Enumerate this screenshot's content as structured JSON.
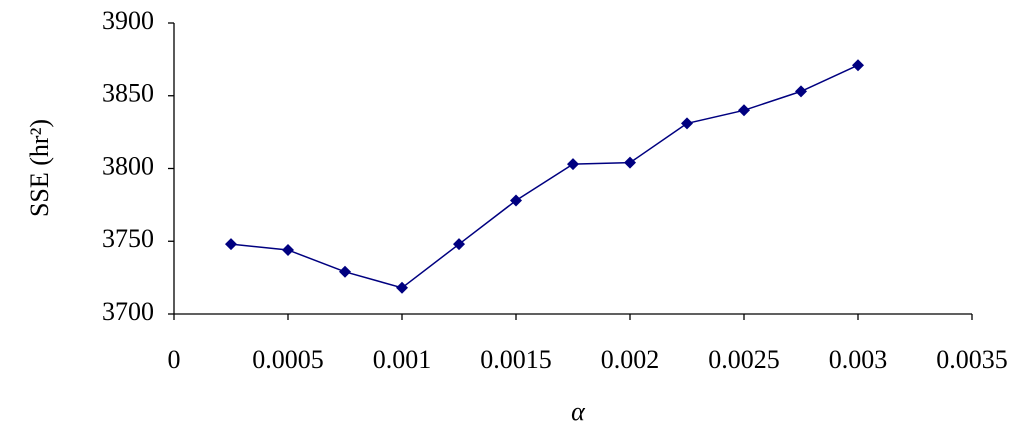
{
  "chart_data": {
    "type": "line",
    "x_label": "α",
    "y_label": "SSE (hr²)",
    "x": [
      0.00025,
      0.0005,
      0.00075,
      0.001,
      0.00125,
      0.0015,
      0.00175,
      0.002,
      0.00225,
      0.0025,
      0.00275,
      0.003
    ],
    "series": [
      {
        "name": "SSE",
        "color": "#000080",
        "values": [
          3748,
          3744,
          3729,
          3718,
          3748,
          3778,
          3803,
          3804,
          3831,
          3840,
          3853,
          3871
        ]
      }
    ],
    "xlim": [
      0,
      0.0035
    ],
    "xticks": [
      0,
      0.0005,
      0.001,
      0.0015,
      0.002,
      0.0025,
      0.003,
      0.0035
    ],
    "ylim": [
      3700,
      3900
    ],
    "yticks": [
      3700,
      3750,
      3800,
      3850,
      3900
    ],
    "marker": "diamond",
    "grid": false,
    "legend": false
  }
}
